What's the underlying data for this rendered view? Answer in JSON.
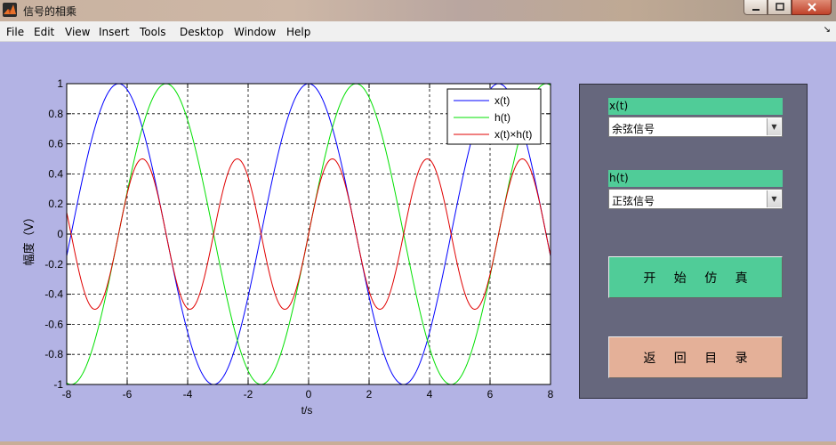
{
  "window": {
    "title": "信号的相乘"
  },
  "menu": [
    "File",
    "Edit",
    "View",
    "Insert",
    "Tools",
    "Desktop",
    "Window",
    "Help"
  ],
  "controls": {
    "x_label": "x(t)",
    "x_value": "余弦信号",
    "h_label": "h(t)",
    "h_value": "正弦信号",
    "start_button": "开 始 仿 真",
    "back_button": "返 回 目 录"
  },
  "colors": {
    "figure_bg": "#b3b3e4",
    "panel_bg": "#66677d",
    "accent_green": "#50cc98",
    "accent_salmon": "#e4b098"
  },
  "chart_data": {
    "type": "line",
    "xlabel": "t/s",
    "ylabel": "幅度（V）",
    "xlim": [
      -8,
      8
    ],
    "ylim": [
      -1,
      1
    ],
    "xticks": [
      -8,
      -6,
      -4,
      -2,
      0,
      2,
      4,
      6,
      8
    ],
    "yticks": [
      1,
      0.8,
      0.6,
      0.4,
      0.2,
      0,
      -0.2,
      -0.4,
      -0.6,
      -0.8,
      -1
    ],
    "grid": true,
    "legend_position": "top-right",
    "series": [
      {
        "name": "x(t)",
        "color": "#0000ff",
        "function": "cos(t)"
      },
      {
        "name": "h(t)",
        "color": "#00e000",
        "function": "sin(t)"
      },
      {
        "name": "x(t)×h(t)",
        "color": "#e00000",
        "function": "cos(t)*sin(t)"
      }
    ]
  }
}
